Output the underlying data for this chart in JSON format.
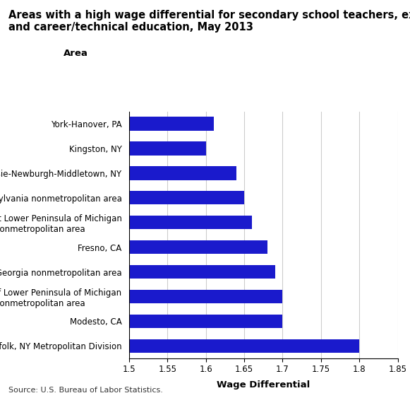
{
  "title_line1": "Areas with a high wage differential for secondary school teachers, except special",
  "title_line2": "and career/technical education, May 2013",
  "categories": [
    "Nassau-Suffolk, NY Metropolitan Division",
    "Modesto, CA",
    "Balance of Lower Peninsula of Michigan\nnonmetropolitan area",
    "North Georgia nonmetropolitan area",
    "Fresno, CA",
    "Northwest Lower Peninsula of Michigan\nnonmetropolitan area",
    "Northeastern Pennsylvania nonmetropolitan area",
    "Poughkeepsie-Newburgh-Middletown, NY",
    "Kingston, NY",
    "York-Hanover, PA"
  ],
  "values": [
    1.8,
    1.7,
    1.7,
    1.69,
    1.68,
    1.66,
    1.65,
    1.64,
    1.6,
    1.61
  ],
  "bar_color": "#1a1acc",
  "xlim_min": 1.5,
  "xlim_max": 1.85,
  "xticks": [
    1.5,
    1.55,
    1.6,
    1.65,
    1.7,
    1.75,
    1.8,
    1.85
  ],
  "xtick_labels": [
    "1.5",
    "1.55",
    "1.6",
    "1.65",
    "1.7",
    "1.75",
    "1.8",
    "1.85"
  ],
  "xlabel": "Wage Differential",
  "area_label": "Area",
  "source": "Source: U.S. Bureau of Labor Statistics.",
  "background_color": "#ffffff",
  "grid_color": "#cccccc",
  "title_fontsize": 10.5,
  "label_fontsize": 8.5,
  "tick_fontsize": 8.5,
  "source_fontsize": 8,
  "xlabel_fontsize": 9.5,
  "area_label_fontsize": 9.5
}
